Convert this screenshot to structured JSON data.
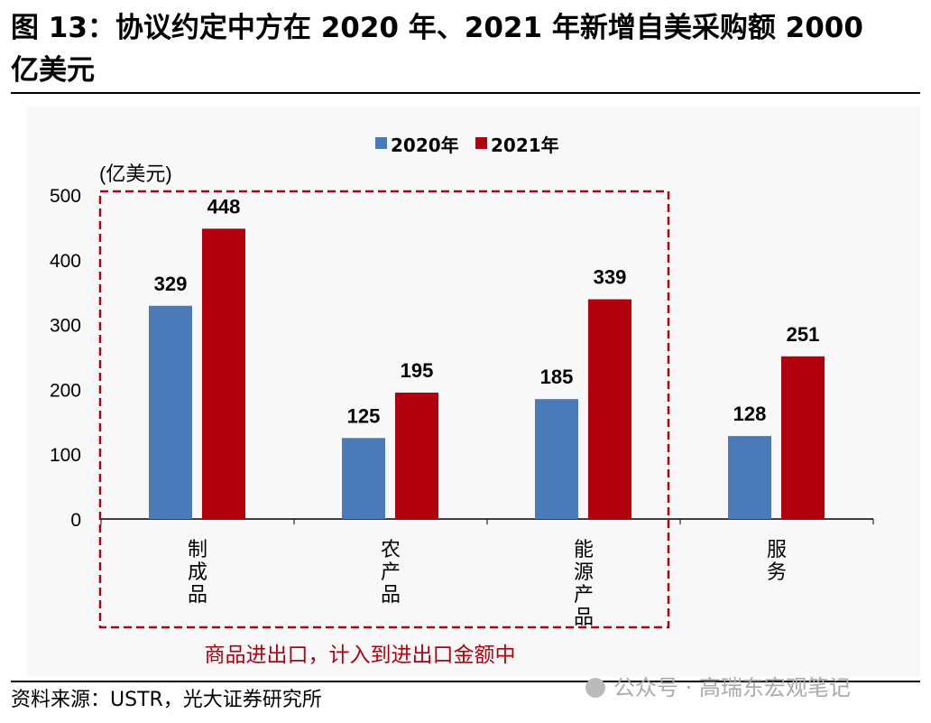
{
  "title_line1": "图 13：协议约定中方在 2020 年、2021 年新增自美采购额 2000",
  "title_line2": "亿美元",
  "source": "资料来源：USTR，光大证券研究所",
  "watermark": "公众号 · 高瑞东宏观笔记",
  "chart_data": {
    "type": "bar",
    "categories": [
      "制成品",
      "农产品",
      "能源产品",
      "服务"
    ],
    "series": [
      {
        "name": "2020年",
        "values": [
          329,
          125,
          185,
          128
        ],
        "color": "#4a7ab8"
      },
      {
        "name": "2021年",
        "values": [
          448,
          195,
          339,
          251
        ],
        "color": "#b0000e"
      }
    ],
    "ylabel": "(亿美元)",
    "ylim": [
      0,
      500
    ],
    "yticks": [
      0,
      100,
      200,
      300,
      400,
      500
    ],
    "legend": "top",
    "grid": false,
    "annotation": "商品进出口，计入到进出口金额中",
    "annotation_color": "#b0000e"
  }
}
